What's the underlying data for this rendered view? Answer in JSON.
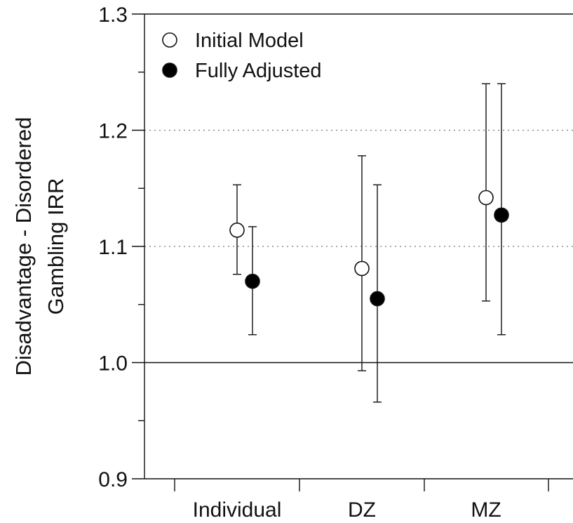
{
  "chart_data": {
    "type": "scatter",
    "title": "",
    "ylabel_lines": [
      "Disadvantage - Disordered",
      "Gambling IRR"
    ],
    "xlabel": "",
    "categories": [
      "Individual",
      "DZ",
      "MZ"
    ],
    "ylim": [
      0.9,
      1.3
    ],
    "yticks_major": [
      "0.9",
      "1.0",
      "1.1",
      "1.2",
      "1.3"
    ],
    "yticks_minor": [
      0.95,
      1.05,
      1.15,
      1.25
    ],
    "dotted_gridlines": [
      1.1,
      1.2
    ],
    "reference_line": 1.0,
    "legend_position": "top-left",
    "series": [
      {
        "name": "Initial Model",
        "marker": "open-circle",
        "values": [
          1.114,
          1.081,
          1.142
        ],
        "lower": [
          1.076,
          0.993,
          1.053
        ],
        "upper": [
          1.153,
          1.178,
          1.24
        ]
      },
      {
        "name": "Fully Adjusted",
        "marker": "filled-circle",
        "values": [
          1.07,
          1.055,
          1.127
        ],
        "lower": [
          1.024,
          0.966,
          1.024
        ],
        "upper": [
          1.117,
          1.153,
          1.24
        ]
      }
    ]
  }
}
